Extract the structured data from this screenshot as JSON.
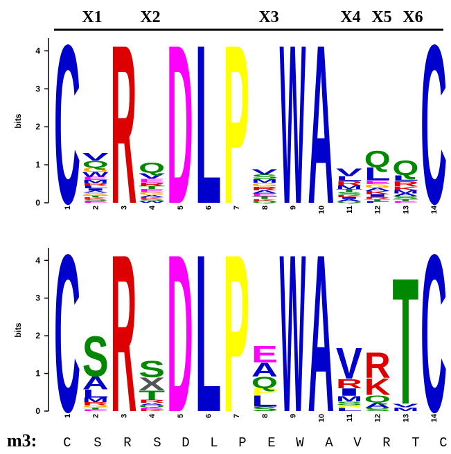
{
  "chart_data": {
    "type": "sequence-logo",
    "header_labels": [
      "X1",
      "X2",
      "X3",
      "X4",
      "X5",
      "X6"
    ],
    "ylabel": "bits",
    "ylim": [
      0,
      4.3
    ],
    "yticks": [
      "0",
      "1",
      "2",
      "3",
      "4"
    ],
    "positions": [
      "1",
      "2",
      "3",
      "4",
      "5",
      "6",
      "7",
      "8",
      "9",
      "10",
      "11",
      "12",
      "13",
      "14"
    ],
    "colors": {
      "C": "#0000cc",
      "R": "#dd0000",
      "D": "#ff00ff",
      "L": "#0000cc",
      "P": "#ffff00",
      "W": "#0000cc",
      "A": "#0000cc",
      "V": "#0000cc",
      "Q": "#008800",
      "S": "#008800",
      "T": "#008800",
      "E": "#ff00ff",
      "K": "#dd0000",
      "M": "#0000cc",
      "I": "#0000cc",
      "G": "#ffaa00",
      "N": "#008800",
      "F": "#0000cc",
      "Y": "#008800",
      "H": "#0000cc"
    },
    "logos": [
      {
        "columns": [
          [
            {
              "l": "C",
              "h": 4.3
            }
          ],
          [
            {
              "l": "E",
              "h": 0.05
            },
            {
              "l": "S",
              "h": 0.05
            },
            {
              "l": "K",
              "h": 0.05
            },
            {
              "l": "T",
              "h": 0.05
            },
            {
              "l": "G",
              "h": 0.06
            },
            {
              "l": "A",
              "h": 0.06
            },
            {
              "l": "I",
              "h": 0.06
            },
            {
              "l": "L",
              "h": 0.07
            },
            {
              "l": "R",
              "h": 0.07
            },
            {
              "l": "M",
              "h": 0.08
            },
            {
              "l": "E",
              "h": 0.08
            },
            {
              "l": "W",
              "h": 0.13
            },
            {
              "l": "G",
              "h": 0.12
            },
            {
              "l": "Q",
              "h": 0.18
            },
            {
              "l": "V",
              "h": 0.2
            }
          ],
          [
            {
              "l": "R",
              "h": 4.3
            }
          ],
          [
            {
              "l": "W",
              "h": 0.05
            },
            {
              "l": "S",
              "h": 0.05
            },
            {
              "l": "K",
              "h": 0.05
            },
            {
              "l": "A",
              "h": 0.06
            },
            {
              "l": "G",
              "h": 0.07
            },
            {
              "l": "E",
              "h": 0.08
            },
            {
              "l": "T",
              "h": 0.08
            },
            {
              "l": "R",
              "h": 0.1
            },
            {
              "l": "E",
              "h": 0.1
            },
            {
              "l": "V",
              "h": 0.15
            },
            {
              "l": "Q",
              "h": 0.28
            }
          ],
          [
            {
              "l": "D",
              "h": 4.3
            }
          ],
          [
            {
              "l": "L",
              "h": 4.3
            }
          ],
          [
            {
              "l": "P",
              "h": 4.3
            }
          ],
          [
            {
              "l": "Q",
              "h": 0.05
            },
            {
              "l": "K",
              "h": 0.05
            },
            {
              "l": "T",
              "h": 0.07
            },
            {
              "l": "E",
              "h": 0.08
            },
            {
              "l": "A",
              "h": 0.08
            },
            {
              "l": "R",
              "h": 0.1
            },
            {
              "l": "G",
              "h": 0.1
            },
            {
              "l": "M",
              "h": 0.1
            },
            {
              "l": "S",
              "h": 0.12
            },
            {
              "l": "V",
              "h": 0.15
            }
          ],
          [
            {
              "l": "W",
              "h": 4.3
            }
          ],
          [
            {
              "l": "A",
              "h": 4.3
            }
          ],
          [
            {
              "l": "Q",
              "h": 0.05
            },
            {
              "l": "A",
              "h": 0.05
            },
            {
              "l": "I",
              "h": 0.05
            },
            {
              "l": "K",
              "h": 0.06
            },
            {
              "l": "S",
              "h": 0.07
            },
            {
              "l": "T",
              "h": 0.08
            },
            {
              "l": "M",
              "h": 0.1
            },
            {
              "l": "R",
              "h": 0.12
            },
            {
              "l": "L",
              "h": 0.12
            },
            {
              "l": "V",
              "h": 0.2
            }
          ],
          [
            {
              "l": "F",
              "h": 0.05
            },
            {
              "l": "T",
              "h": 0.05
            },
            {
              "l": "R",
              "h": 0.06
            },
            {
              "l": "I",
              "h": 0.07
            },
            {
              "l": "K",
              "h": 0.08
            },
            {
              "l": "A",
              "h": 0.08
            },
            {
              "l": "G",
              "h": 0.1
            },
            {
              "l": "E",
              "h": 0.1
            },
            {
              "l": "L",
              "h": 0.35
            },
            {
              "l": "Q",
              "h": 0.45
            }
          ],
          [
            {
              "l": "E",
              "h": 0.05
            },
            {
              "l": "T",
              "h": 0.05
            },
            {
              "l": "S",
              "h": 0.07
            },
            {
              "l": "A",
              "h": 0.08
            },
            {
              "l": "M",
              "h": 0.08
            },
            {
              "l": "K",
              "h": 0.1
            },
            {
              "l": "R",
              "h": 0.15
            },
            {
              "l": "L",
              "h": 0.15
            },
            {
              "l": "Q",
              "h": 0.4
            }
          ],
          [
            {
              "l": "C",
              "h": 4.3
            }
          ]
        ]
      },
      {
        "columns": [
          [
            {
              "l": "C",
              "h": 4.3
            }
          ],
          [
            {
              "l": "E",
              "h": 0.05
            },
            {
              "l": "T",
              "h": 0.05
            },
            {
              "l": "G",
              "h": 0.06
            },
            {
              "l": "R",
              "h": 0.08
            },
            {
              "l": "M",
              "h": 0.12
            },
            {
              "l": "L",
              "h": 0.22
            },
            {
              "l": "A",
              "h": 0.35
            },
            {
              "l": "S",
              "h": 1.1
            }
          ],
          [
            {
              "l": "R",
              "h": 4.3
            }
          ],
          [
            {
              "l": "K",
              "h": 0.05
            },
            {
              "l": "E",
              "h": 0.05
            },
            {
              "l": "Q",
              "h": 0.06
            },
            {
              "l": "A",
              "h": 0.06
            },
            {
              "l": "R",
              "h": 0.08
            },
            {
              "l": "T",
              "h": 0.25
            },
            {
              "l": "X",
              "h": 0.35
            },
            {
              "l": "S",
              "h": 0.45
            }
          ],
          [
            {
              "l": "D",
              "h": 4.3
            }
          ],
          [
            {
              "l": "L",
              "h": 4.3
            }
          ],
          [
            {
              "l": "P",
              "h": 4.3
            }
          ],
          [
            {
              "l": "S",
              "h": 0.12
            },
            {
              "l": "L",
              "h": 0.3
            },
            {
              "l": "P",
              "h": 0.2
            },
            {
              "l": "Q",
              "h": 0.3
            },
            {
              "l": "A",
              "h": 0.38
            },
            {
              "l": "E",
              "h": 0.45
            }
          ],
          [
            {
              "l": "W",
              "h": 4.3
            }
          ],
          [
            {
              "l": "A",
              "h": 4.3
            }
          ],
          [
            {
              "l": "L",
              "h": 0.08
            },
            {
              "l": "P",
              "h": 0.08
            },
            {
              "l": "S",
              "h": 0.1
            },
            {
              "l": "M",
              "h": 0.15
            },
            {
              "l": "I",
              "h": 0.2
            },
            {
              "l": "R",
              "h": 0.25
            },
            {
              "l": "V",
              "h": 0.85
            }
          ],
          [
            {
              "l": "S",
              "h": 0.08
            },
            {
              "l": "A",
              "h": 0.15
            },
            {
              "l": "Q",
              "h": 0.2
            },
            {
              "l": "K",
              "h": 0.45
            },
            {
              "l": "R",
              "h": 0.7
            }
          ],
          [
            {
              "l": "M",
              "h": 0.1
            },
            {
              "l": "V",
              "h": 0.1
            },
            {
              "l": "T",
              "h": 3.45
            }
          ],
          [
            {
              "l": "C",
              "h": 4.3
            }
          ]
        ]
      }
    ],
    "consensus_label": "m3:",
    "consensus": [
      "C",
      "S",
      "R",
      "S",
      "D",
      "L",
      "P",
      "E",
      "W",
      "A",
      "V",
      "R",
      "T",
      "C"
    ]
  }
}
